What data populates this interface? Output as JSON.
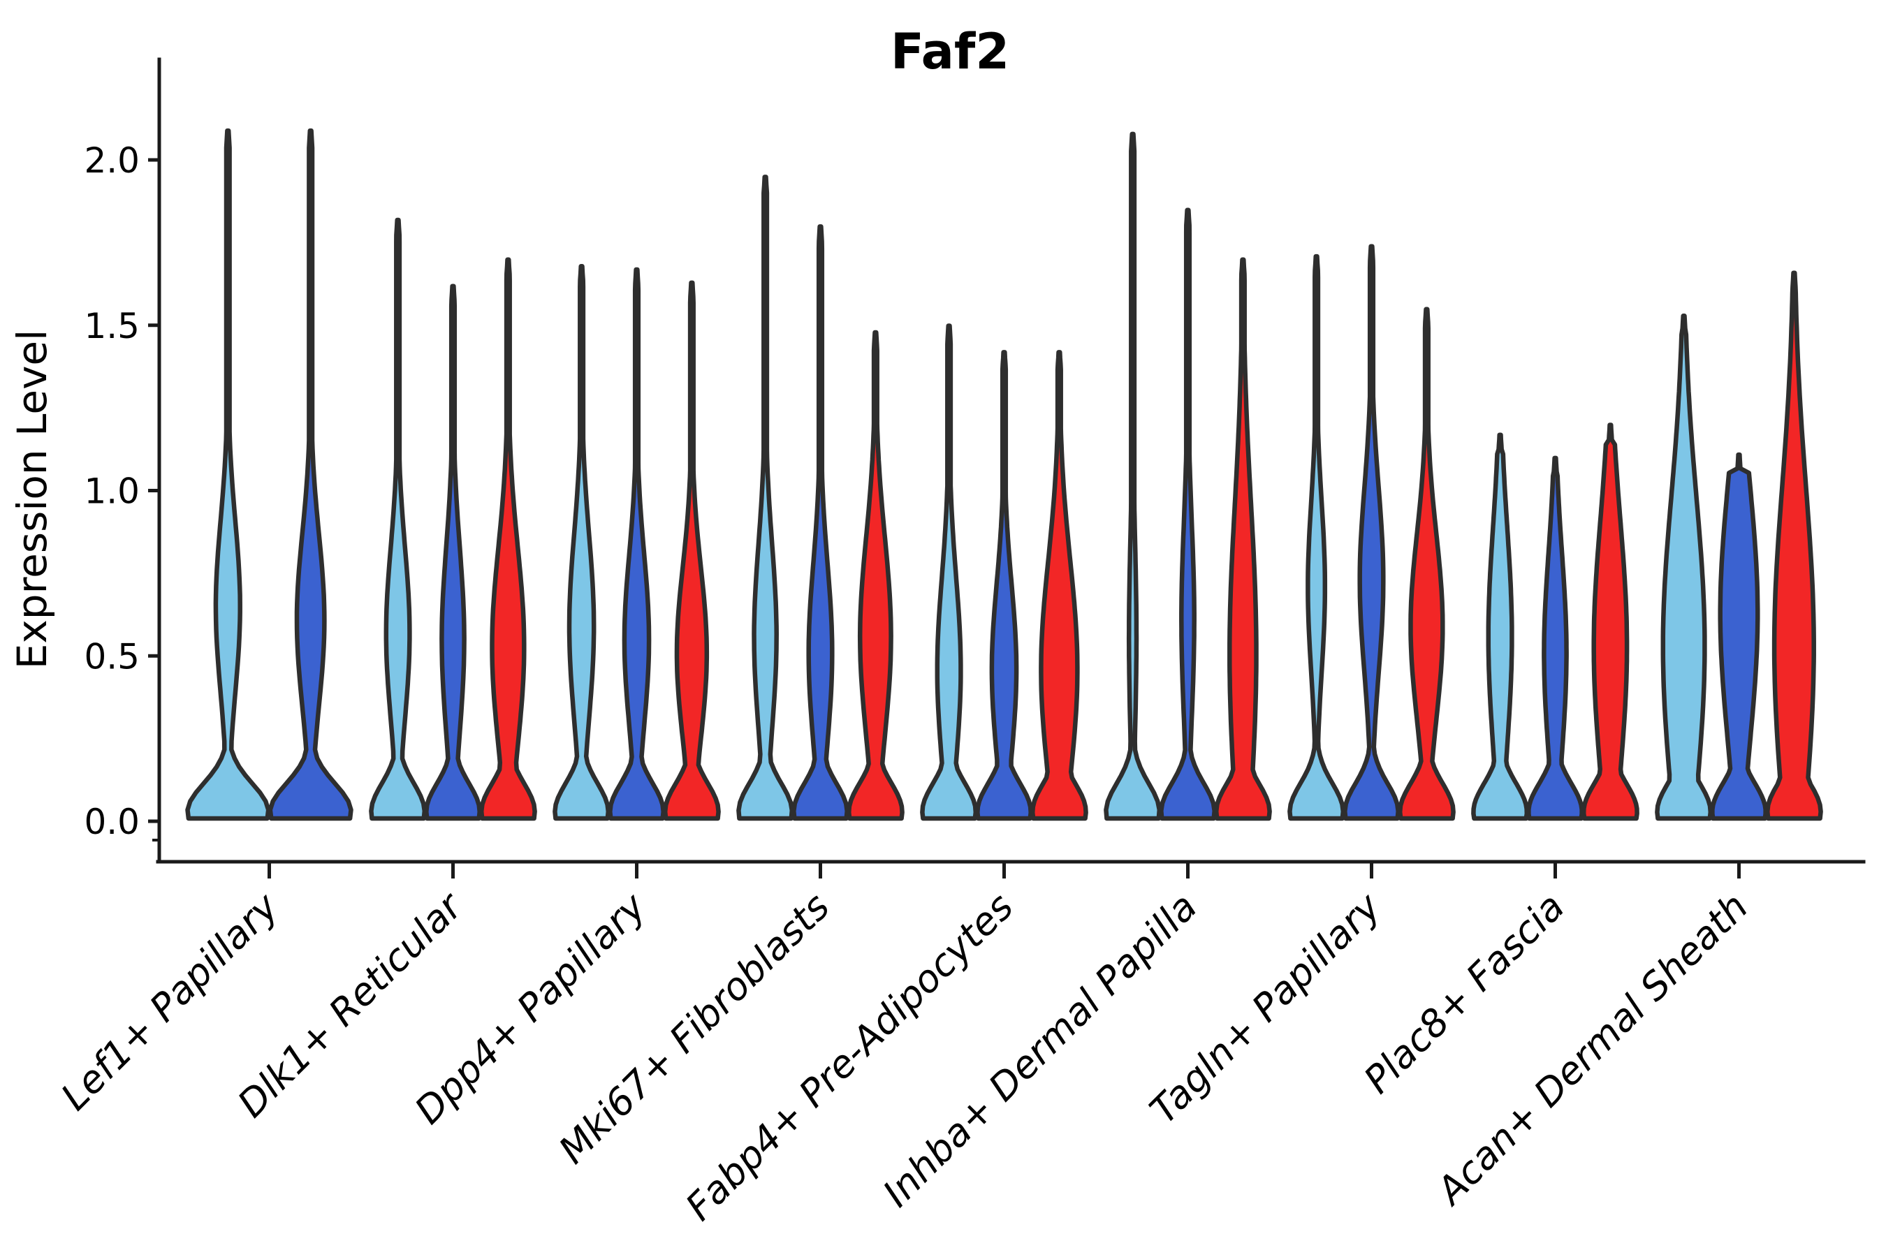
{
  "title": "Faf2",
  "y_axis": {
    "label": "Expression Level",
    "tick_labels": [
      "0.0",
      "0.5",
      "1.0",
      "1.5",
      "2.0"
    ],
    "tick_values": [
      0.0,
      0.5,
      1.0,
      1.5,
      2.0
    ]
  },
  "colors": {
    "light_blue": "#7EC6E7",
    "dark_blue": "#3B62D0",
    "red": "#F22626",
    "violin_outline": "#2E2E2E",
    "axis": "#1A1A1A",
    "background": "#FFFFFF"
  },
  "chart_data": {
    "type": "violin",
    "title": "Faf2",
    "xlabel": "",
    "ylabel": "Expression Level",
    "ylim": [
      0,
      2.15
    ],
    "yticks": [
      0.0,
      0.5,
      1.0,
      1.5,
      2.0
    ],
    "grid": false,
    "legend": "none",
    "series_colors": [
      "#7EC6E7",
      "#3B62D0",
      "#F22626"
    ],
    "categories": [
      "Lef1+ Papillary",
      "Dlk1+ Reticular",
      "Dpp4+ Papillary",
      "Mki67+ Fibroblasts",
      "Fabp4+ Pre-Adipocytes",
      "Inhba+ Dermal Papilla",
      "Tagln+ Papillary",
      "Plac8+ Fascia",
      "Acan+ Dermal Sheath"
    ],
    "groups": [
      {
        "category": "Lef1+ Papillary",
        "violins": [
          {
            "series": 0,
            "max_expression": 2.08,
            "bulge": {
              "amp": 0.3,
              "pos": 0.64,
              "sig": 0.26
            }
          },
          {
            "series": 1,
            "max_expression": 2.08,
            "bulge": {
              "amp": 0.34,
              "pos": 0.6,
              "sig": 0.26
            }
          }
        ]
      },
      {
        "category": "Dlk1+ Reticular",
        "violins": [
          {
            "series": 0,
            "max_expression": 1.81,
            "bulge": {
              "amp": 0.44,
              "pos": 0.56,
              "sig": 0.26
            }
          },
          {
            "series": 1,
            "max_expression": 1.61,
            "bulge": {
              "amp": 0.42,
              "pos": 0.54,
              "sig": 0.28
            }
          },
          {
            "series": 2,
            "max_expression": 1.69,
            "bulge": {
              "amp": 0.6,
              "pos": 0.52,
              "sig": 0.3
            }
          }
        ]
      },
      {
        "category": "Dpp4+ Papillary",
        "violins": [
          {
            "series": 0,
            "max_expression": 1.67,
            "bulge": {
              "amp": 0.46,
              "pos": 0.58,
              "sig": 0.28
            }
          },
          {
            "series": 1,
            "max_expression": 1.66,
            "bulge": {
              "amp": 0.46,
              "pos": 0.54,
              "sig": 0.26
            }
          },
          {
            "series": 2,
            "max_expression": 1.62,
            "bulge": {
              "amp": 0.56,
              "pos": 0.5,
              "sig": 0.26
            }
          }
        ]
      },
      {
        "category": "Mki67+ Fibroblasts",
        "violins": [
          {
            "series": 0,
            "max_expression": 1.94,
            "bulge": {
              "amp": 0.42,
              "pos": 0.55,
              "sig": 0.28
            }
          },
          {
            "series": 1,
            "max_expression": 1.79,
            "bulge": {
              "amp": 0.44,
              "pos": 0.5,
              "sig": 0.27
            }
          },
          {
            "series": 2,
            "max_expression": 1.47,
            "bulge": {
              "amp": 0.58,
              "pos": 0.55,
              "sig": 0.3
            }
          }
        ]
      },
      {
        "category": "Fabp4+ Pre-Adipocytes",
        "violins": [
          {
            "series": 0,
            "max_expression": 1.49,
            "bulge": {
              "amp": 0.44,
              "pos": 0.45,
              "sig": 0.28
            }
          },
          {
            "series": 1,
            "max_expression": 1.41,
            "bulge": {
              "amp": 0.46,
              "pos": 0.45,
              "sig": 0.26
            }
          },
          {
            "series": 2,
            "max_expression": 1.41,
            "bulge": {
              "amp": 0.68,
              "pos": 0.45,
              "sig": 0.33
            }
          }
        ]
      },
      {
        "category": "Inhba+ Dermal Papilla",
        "violins": [
          {
            "series": 0,
            "max_expression": 2.07,
            "bulge": {
              "amp": 0.14,
              "pos": 0.55,
              "sig": 0.3
            }
          },
          {
            "series": 1,
            "max_expression": 1.84,
            "bulge": {
              "amp": 0.24,
              "pos": 0.6,
              "sig": 0.3
            }
          },
          {
            "series": 2,
            "max_expression": 1.69,
            "bulge": {
              "amp": 0.5,
              "pos": 0.5,
              "sig": 0.45
            }
          }
        ]
      },
      {
        "category": "Tagln+ Papillary",
        "violins": [
          {
            "series": 0,
            "max_expression": 1.7,
            "bulge": {
              "amp": 0.32,
              "pos": 0.7,
              "sig": 0.26
            }
          },
          {
            "series": 1,
            "max_expression": 1.73,
            "bulge": {
              "amp": 0.44,
              "pos": 0.72,
              "sig": 0.28
            }
          },
          {
            "series": 2,
            "max_expression": 1.54,
            "bulge": {
              "amp": 0.6,
              "pos": 0.58,
              "sig": 0.28
            }
          }
        ]
      },
      {
        "category": "Plac8+ Fascia",
        "violins": [
          {
            "series": 0,
            "max_expression": 1.16,
            "bulge": {
              "amp": 0.44,
              "pos": 0.55,
              "sig": 0.33
            }
          },
          {
            "series": 1,
            "max_expression": 1.09,
            "bulge": {
              "amp": 0.42,
              "pos": 0.5,
              "sig": 0.3
            }
          },
          {
            "series": 2,
            "max_expression": 1.19,
            "bulge": {
              "amp": 0.62,
              "pos": 0.52,
              "sig": 0.38
            }
          }
        ]
      },
      {
        "category": "Acan+ Dermal Sheath",
        "violins": [
          {
            "series": 0,
            "max_expression": 1.52,
            "bulge": {
              "amp": 0.78,
              "pos": 0.52,
              "sig": 0.45
            }
          },
          {
            "series": 1,
            "max_expression": 1.1,
            "bulge": {
              "amp": 0.7,
              "pos": 0.62,
              "sig": 0.38
            }
          },
          {
            "series": 2,
            "max_expression": 1.65,
            "bulge": {
              "amp": 0.74,
              "pos": 0.52,
              "sig": 0.48
            }
          }
        ]
      }
    ]
  }
}
